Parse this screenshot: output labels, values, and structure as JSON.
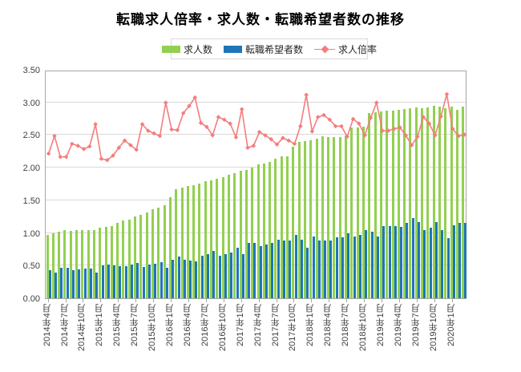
{
  "title": "転職求人倍率・求人数・転職希望者数の推移",
  "colors": {
    "bar_green": "#92d050",
    "bar_blue": "#1f75b8",
    "line_red": "#f47d7d",
    "grid": "#d9d9d9",
    "axis_border": "#a6a6a6",
    "text": "#404040"
  },
  "y_axis": {
    "labels": [
      "3.50",
      "3.00",
      "2.50",
      "2.00",
      "1.50",
      "1.00",
      "0.50",
      "0.00"
    ],
    "min": 0.0,
    "max": 3.5,
    "step": 0.5
  },
  "chart_data": {
    "type": "bar",
    "subtype": "grouped bars + line overlay",
    "title": "転職求人倍率・求人数・転職希望者数の推移",
    "xlabel": "",
    "ylabel": "",
    "ylim": [
      0.0,
      3.5
    ],
    "grid": true,
    "legend_position": "top",
    "categories": [
      "2014年4月",
      "2014年5月",
      "2014年6月",
      "2014年7月",
      "2014年8月",
      "2014年9月",
      "2014年10月",
      "2014年11月",
      "2014年12月",
      "2015年1月",
      "2015年2月",
      "2015年3月",
      "2015年4月",
      "2015年5月",
      "2015年6月",
      "2015年7月",
      "2015年8月",
      "2015年9月",
      "2015年10月",
      "2015年11月",
      "2015年12月",
      "2016年1月",
      "2016年2月",
      "2016年3月",
      "2016年4月",
      "2016年5月",
      "2016年6月",
      "2016年7月",
      "2016年8月",
      "2016年9月",
      "2016年10月",
      "2016年11月",
      "2016年12月",
      "2017年1月",
      "2017年2月",
      "2017年3月",
      "2017年4月",
      "2017年5月",
      "2017年6月",
      "2017年7月",
      "2017年8月",
      "2017年9月",
      "2017年10月",
      "2017年11月",
      "2017年12月",
      "2018年1月",
      "2018年2月",
      "2018年3月",
      "2018年4月",
      "2018年5月",
      "2018年6月",
      "2018年7月",
      "2018年8月",
      "2018年9月",
      "2018年10月",
      "2018年11月",
      "2018年12月",
      "2019年1月",
      "2019年2月",
      "2019年3月",
      "2019年4月",
      "2019年5月",
      "2019年6月",
      "2019年7月",
      "2019年8月",
      "2019年9月",
      "2019年10月",
      "2019年11月",
      "2019年12月",
      "2020年1月",
      "2020年2月",
      "2020年3月"
    ],
    "x_tick_labels": [
      "2014年4月",
      "2014年7月",
      "2014年10月",
      "2015年1月",
      "2015年4月",
      "2015年7月",
      "2015年10月",
      "2016年1月",
      "2016年4月",
      "2016年7月",
      "2016年10月",
      "2017年1月",
      "2017年4月",
      "2017年7月",
      "2017年10月",
      "2018年1月",
      "2018年4月",
      "2018年7月",
      "2018年10月",
      "2019年1月",
      "2019年4月",
      "2019年7月",
      "2019年10月",
      "2020年1月"
    ],
    "series": [
      {
        "name": "求人数",
        "type": "bar",
        "color": "#92d050",
        "values": [
          0.97,
          0.99,
          1.02,
          1.04,
          1.03,
          1.04,
          1.05,
          1.05,
          1.05,
          1.08,
          1.09,
          1.11,
          1.15,
          1.19,
          1.2,
          1.25,
          1.28,
          1.31,
          1.36,
          1.39,
          1.42,
          1.55,
          1.67,
          1.7,
          1.72,
          1.73,
          1.76,
          1.79,
          1.81,
          1.83,
          1.86,
          1.89,
          1.92,
          1.95,
          1.97,
          2.0,
          2.05,
          2.06,
          2.09,
          2.14,
          2.18,
          2.17,
          2.32,
          2.39,
          2.41,
          2.42,
          2.45,
          2.48,
          2.47,
          2.47,
          2.47,
          2.49,
          2.61,
          2.62,
          2.63,
          2.84,
          2.85,
          2.86,
          2.87,
          2.88,
          2.89,
          2.9,
          2.91,
          2.92,
          2.91,
          2.92,
          2.95,
          2.94,
          2.91,
          2.94,
          2.89,
          2.93
        ]
      },
      {
        "name": "転職希望者数",
        "type": "bar",
        "color": "#1f75b8",
        "values": [
          0.43,
          0.39,
          0.47,
          0.47,
          0.43,
          0.44,
          0.45,
          0.45,
          0.39,
          0.5,
          0.51,
          0.5,
          0.49,
          0.49,
          0.51,
          0.54,
          0.48,
          0.51,
          0.53,
          0.55,
          0.47,
          0.59,
          0.64,
          0.59,
          0.58,
          0.56,
          0.65,
          0.68,
          0.72,
          0.65,
          0.67,
          0.7,
          0.77,
          0.67,
          0.85,
          0.85,
          0.8,
          0.82,
          0.85,
          0.9,
          0.88,
          0.89,
          0.97,
          0.9,
          0.77,
          0.94,
          0.88,
          0.88,
          0.89,
          0.93,
          0.93,
          1.0,
          0.94,
          0.97,
          1.04,
          1.02,
          0.94,
          1.1,
          1.11,
          1.1,
          1.09,
          1.15,
          1.23,
          1.17,
          1.04,
          1.08,
          1.17,
          1.05,
          0.92,
          1.12,
          1.15,
          1.16
        ]
      },
      {
        "name": "求人倍率",
        "type": "line",
        "color": "#f47d7d",
        "values": [
          2.24,
          2.51,
          2.19,
          2.19,
          2.39,
          2.36,
          2.31,
          2.35,
          2.69,
          2.16,
          2.14,
          2.21,
          2.33,
          2.44,
          2.37,
          2.3,
          2.69,
          2.59,
          2.55,
          2.51,
          3.02,
          2.61,
          2.6,
          2.86,
          2.97,
          3.1,
          2.71,
          2.65,
          2.52,
          2.8,
          2.76,
          2.7,
          2.49,
          2.92,
          2.33,
          2.36,
          2.57,
          2.52,
          2.46,
          2.38,
          2.48,
          2.44,
          2.39,
          2.66,
          3.14,
          2.58,
          2.8,
          2.83,
          2.76,
          2.66,
          2.66,
          2.5,
          2.77,
          2.7,
          2.52,
          2.79,
          3.02,
          2.59,
          2.59,
          2.62,
          2.64,
          2.52,
          2.37,
          2.5,
          2.8,
          2.7,
          2.52,
          2.81,
          3.15,
          2.62,
          2.51,
          2.53
        ]
      }
    ]
  }
}
